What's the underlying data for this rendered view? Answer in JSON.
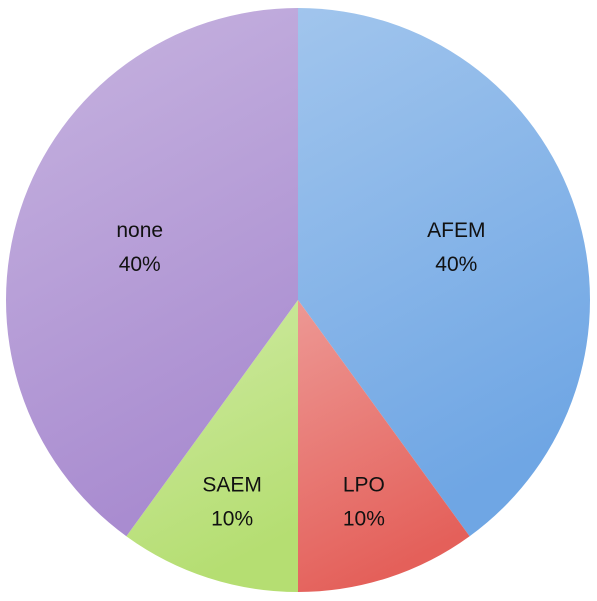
{
  "chart_data": {
    "type": "pie",
    "categories": [
      "AFEM",
      "LPO",
      "SAEM",
      "none"
    ],
    "values": [
      40,
      10,
      10,
      40
    ],
    "value_labels": [
      "40%",
      "10%",
      "10%",
      "40%"
    ],
    "colors": [
      "#6fa6e4",
      "#e4605a",
      "#b5de72",
      "#a98cd0"
    ]
  }
}
